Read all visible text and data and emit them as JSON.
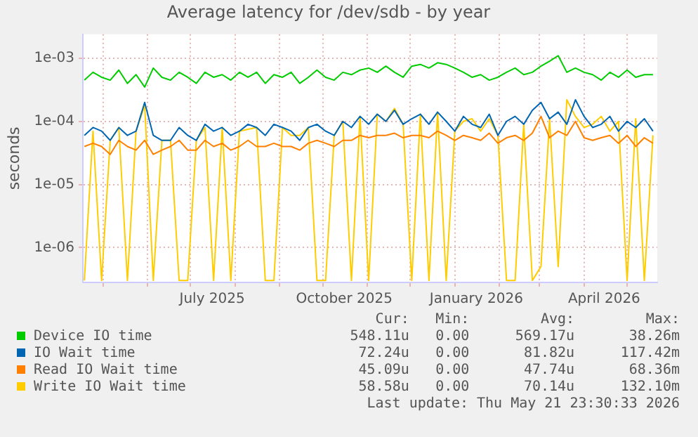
{
  "chart_data": {
    "type": "line",
    "title": "Average latency for /dev/sdb - by year",
    "ylabel": "seconds",
    "x": [
      "2025-04-18",
      "2025-04-24",
      "2025-04-30",
      "2025-05-06",
      "2025-05-12",
      "2025-05-18",
      "2025-05-24",
      "2025-05-30",
      "2025-06-05",
      "2025-06-11",
      "2025-06-17",
      "2025-06-23",
      "2025-06-29",
      "2025-07-05",
      "2025-07-11",
      "2025-07-17",
      "2025-07-23",
      "2025-07-29",
      "2025-08-04",
      "2025-08-10",
      "2025-08-16",
      "2025-08-22",
      "2025-08-28",
      "2025-09-03",
      "2025-09-09",
      "2025-09-15",
      "2025-09-21",
      "2025-09-27",
      "2025-10-03",
      "2025-10-09",
      "2025-10-15",
      "2025-10-21",
      "2025-10-27",
      "2025-11-02",
      "2025-11-08",
      "2025-11-14",
      "2025-11-20",
      "2025-11-26",
      "2025-12-02",
      "2025-12-08",
      "2025-12-14",
      "2025-12-20",
      "2025-12-26",
      "2026-01-01",
      "2026-01-07",
      "2026-01-13",
      "2026-01-19",
      "2026-01-25",
      "2026-01-31",
      "2026-02-06",
      "2026-02-12",
      "2026-02-18",
      "2026-02-24",
      "2026-03-02",
      "2026-03-08",
      "2026-03-14",
      "2026-03-20",
      "2026-03-26",
      "2026-04-01",
      "2026-04-07",
      "2026-04-13",
      "2026-04-19",
      "2026-04-25",
      "2026-05-01",
      "2026-05-07",
      "2026-05-13",
      "2026-05-19"
    ],
    "series": [
      {
        "name": "Device IO time",
        "color": "#00cc00",
        "values": [
          0.00045,
          0.0006,
          0.0005,
          0.00045,
          0.00065,
          0.0004,
          0.00055,
          0.00035,
          0.0007,
          0.0005,
          0.00045,
          0.0006,
          0.0005,
          0.0004,
          0.0006,
          0.0005,
          0.00055,
          0.00045,
          0.0006,
          0.0005,
          0.0006,
          0.0004,
          0.00055,
          0.0005,
          0.0006,
          0.0004,
          0.0005,
          0.00065,
          0.0005,
          0.00045,
          0.0006,
          0.00055,
          0.00065,
          0.0007,
          0.0006,
          0.00075,
          0.0006,
          0.0005,
          0.00075,
          0.0008,
          0.0007,
          0.00085,
          0.0008,
          0.0007,
          0.0006,
          0.0005,
          0.00055,
          0.00045,
          0.0005,
          0.0006,
          0.0007,
          0.00055,
          0.0006,
          0.00075,
          0.0009,
          0.0011,
          0.0006,
          0.0007,
          0.0006,
          0.00055,
          0.00045,
          0.0006,
          0.0005,
          0.00065,
          0.0005,
          0.00055,
          0.00055
        ]
      },
      {
        "name": "IO Wait time",
        "color": "#0066b3",
        "values": [
          6e-05,
          8e-05,
          7e-05,
          5e-05,
          8e-05,
          6e-05,
          7e-05,
          0.0002,
          6e-05,
          5e-05,
          5e-05,
          8e-05,
          6e-05,
          5e-05,
          9e-05,
          7e-05,
          8e-05,
          6e-05,
          7e-05,
          9e-05,
          8e-05,
          6e-05,
          9e-05,
          8e-05,
          7e-05,
          5e-05,
          8e-05,
          9e-05,
          7e-05,
          6e-05,
          0.0001,
          8e-05,
          0.00012,
          9e-05,
          0.00013,
          0.0001,
          0.00015,
          9e-05,
          0.00011,
          0.00013,
          9e-05,
          0.00014,
          0.0001,
          7e-05,
          0.00012,
          9e-05,
          8e-05,
          0.00013,
          6e-05,
          0.0001,
          0.00012,
          9e-05,
          0.00015,
          0.0002,
          0.00011,
          0.00014,
          9e-05,
          0.00022,
          0.00012,
          8e-05,
          9e-05,
          0.00012,
          7e-05,
          0.0001,
          8e-05,
          0.00011,
          7e-05
        ]
      },
      {
        "name": "Read IO Wait time",
        "color": "#ff8000",
        "values": [
          4e-05,
          4.5e-05,
          4e-05,
          3e-05,
          5e-05,
          4e-05,
          3.5e-05,
          5e-05,
          3e-05,
          3.5e-05,
          4e-05,
          5e-05,
          3.5e-05,
          3.5e-05,
          5e-05,
          4e-05,
          4.5e-05,
          3.5e-05,
          4e-05,
          5e-05,
          4e-05,
          4e-05,
          4.5e-05,
          4e-05,
          4e-05,
          3.5e-05,
          4.5e-05,
          5e-05,
          4.5e-05,
          4e-05,
          5e-05,
          5e-05,
          6e-05,
          5.5e-05,
          6e-05,
          6e-05,
          6.5e-05,
          5.5e-05,
          6e-05,
          6e-05,
          5.5e-05,
          7e-05,
          6e-05,
          5e-05,
          6e-05,
          5.5e-05,
          5e-05,
          6.5e-05,
          4.5e-05,
          5.5e-05,
          6e-05,
          5e-05,
          6.5e-05,
          0.00012,
          5.5e-05,
          7e-05,
          6e-05,
          0.0001,
          5.5e-05,
          5e-05,
          5.5e-05,
          6e-05,
          4.5e-05,
          6e-05,
          4e-05,
          5.5e-05,
          4.5e-05
        ]
      },
      {
        "name": "Write IO Wait time",
        "color": "#ffcc00",
        "values": [
          3e-07,
          7e-05,
          3e-07,
          5e-05,
          8e-05,
          3e-07,
          7e-05,
          0.00018,
          3e-07,
          5e-05,
          5e-05,
          3e-07,
          3e-07,
          5e-05,
          8e-05,
          3e-07,
          8e-05,
          3e-07,
          7e-05,
          7.5e-05,
          8e-05,
          3e-07,
          3e-07,
          8e-05,
          6e-05,
          6e-05,
          8e-05,
          3e-07,
          3e-07,
          6e-05,
          0.0001,
          3e-07,
          0.00012,
          3e-07,
          0.00013,
          0.0001,
          0.00016,
          9e-05,
          3e-07,
          0.00013,
          3e-07,
          0.00014,
          3e-07,
          7e-05,
          0.0001,
          0.00011,
          7e-05,
          0.00011,
          6e-05,
          3e-07,
          3e-07,
          9e-05,
          3e-07,
          5e-07,
          0.00011,
          5e-07,
          0.00022,
          0.00012,
          8e-05,
          9e-05,
          0.00012,
          7e-05,
          0.0001,
          3e-07,
          0.00011,
          3e-07,
          6e-05
        ]
      }
    ],
    "xlim": [
      "2025-04-17",
      "2026-05-22"
    ],
    "xticks": [
      {
        "value": "2025-05-01",
        "label": null
      },
      {
        "value": "2025-06-01",
        "label": null
      },
      {
        "value": "2025-07-01",
        "label": null
      },
      {
        "value": "2025-07-16",
        "label": "July 2025"
      },
      {
        "value": "2025-08-01",
        "label": null
      },
      {
        "value": "2025-09-01",
        "label": null
      },
      {
        "value": "2025-10-01",
        "label": null
      },
      {
        "value": "2025-10-16",
        "label": "October 2025"
      },
      {
        "value": "2025-11-01",
        "label": null
      },
      {
        "value": "2025-12-01",
        "label": null
      },
      {
        "value": "2026-01-01",
        "label": null
      },
      {
        "value": "2026-01-16",
        "label": "January 2026"
      },
      {
        "value": "2026-02-01",
        "label": null
      },
      {
        "value": "2026-03-01",
        "label": null
      },
      {
        "value": "2026-04-01",
        "label": null
      },
      {
        "value": "2026-04-15",
        "label": "April 2026"
      },
      {
        "value": "2026-05-01",
        "label": null
      }
    ],
    "ylim": [
      2.8e-07,
      0.0024
    ],
    "yticks": [
      {
        "value": 1e-06,
        "label": "1e-06"
      },
      {
        "value": 1e-05,
        "label": "1e-05"
      },
      {
        "value": 0.0001,
        "label": "1e-04"
      },
      {
        "value": 0.001,
        "label": "1e-03"
      }
    ],
    "log": true,
    "grid": true,
    "legend": "bottom",
    "marker": "none",
    "line_style": "solid",
    "annotations": [
      "Cur:",
      "Min:",
      "Avg:",
      "Max:",
      "548.11u",
      "0.00",
      "569.17u",
      "38.26m",
      "72.24u",
      "0.00",
      "81.82u",
      "117.42m",
      "45.09u",
      "0.00",
      "47.74u",
      "68.36m",
      "58.58u",
      "0.00",
      "70.14u",
      "132.10m",
      "Last update: Thu May 21 23:30:33 2026"
    ]
  }
}
